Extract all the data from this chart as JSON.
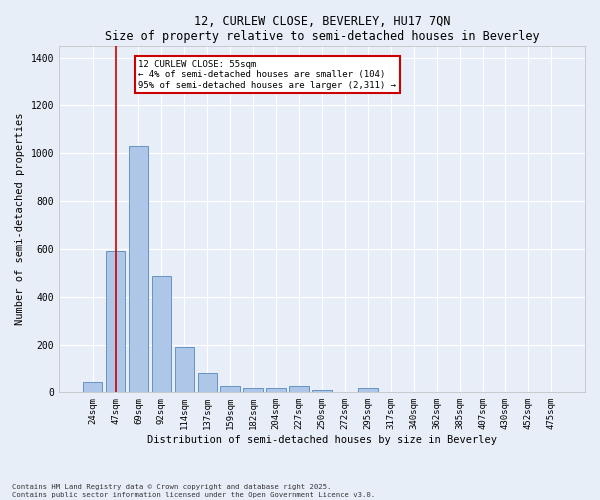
{
  "title": "12, CURLEW CLOSE, BEVERLEY, HU17 7QN",
  "subtitle": "Size of property relative to semi-detached houses in Beverley",
  "xlabel": "Distribution of semi-detached houses by size in Beverley",
  "ylabel": "Number of semi-detached properties",
  "categories": [
    "24sqm",
    "47sqm",
    "69sqm",
    "92sqm",
    "114sqm",
    "137sqm",
    "159sqm",
    "182sqm",
    "204sqm",
    "227sqm",
    "250sqm",
    "272sqm",
    "295sqm",
    "317sqm",
    "340sqm",
    "362sqm",
    "385sqm",
    "407sqm",
    "430sqm",
    "452sqm",
    "475sqm"
  ],
  "values": [
    45,
    590,
    1030,
    485,
    190,
    82,
    28,
    18,
    18,
    25,
    8,
    0,
    18,
    0,
    0,
    0,
    0,
    0,
    0,
    0,
    0
  ],
  "bar_color": "#aec6e8",
  "bar_edge_color": "#5588bb",
  "background_color": "#e8eef8",
  "grid_color": "#ffffff",
  "vline_x": 1,
  "vline_color": "#cc0000",
  "annotation_text": "12 CURLEW CLOSE: 55sqm\n← 4% of semi-detached houses are smaller (104)\n95% of semi-detached houses are larger (2,311) →",
  "annotation_box_color": "#cc0000",
  "ylim": [
    0,
    1450
  ],
  "yticks": [
    0,
    200,
    400,
    600,
    800,
    1000,
    1200,
    1400
  ],
  "footer_line1": "Contains HM Land Registry data © Crown copyright and database right 2025.",
  "footer_line2": "Contains public sector information licensed under the Open Government Licence v3.0."
}
